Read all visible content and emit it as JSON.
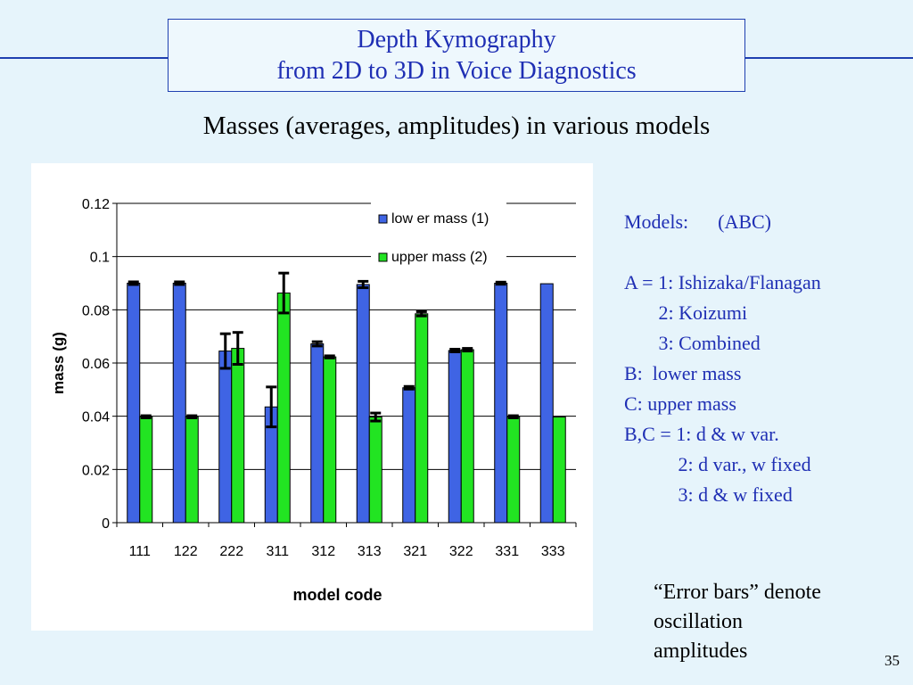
{
  "header": {
    "title_line1": "Depth Kymography",
    "title_line2": "from 2D to 3D in Voice Diagnostics"
  },
  "subtitle": "Masses (averages, amplitudes) in various models",
  "notes": [
    "Models:      (ABC)",
    "",
    "A = 1: Ishizaka/Flanagan",
    "       2: Koizumi",
    "       3: Combined",
    "B:  lower mass",
    "C: upper mass",
    "B,C = 1: d & w var.",
    "           2: d var., w fixed",
    "           3: d & w fixed"
  ],
  "caption": [
    "“Error bars” denote",
    "oscillation",
    "amplitudes"
  ],
  "page_number": "35",
  "chart_data": {
    "type": "bar",
    "xlabel": "model code",
    "ylabel": "mass (g)",
    "ylim": [
      0,
      0.12
    ],
    "yticks": [
      "0",
      "0.02",
      "0.04",
      "0.06",
      "0.08",
      "0.1",
      "0.12"
    ],
    "ytick_values": [
      0,
      0.02,
      0.04,
      0.06,
      0.08,
      0.1,
      0.12
    ],
    "categories": [
      "111",
      "122",
      "222",
      "311",
      "312",
      "313",
      "321",
      "322",
      "331",
      "333"
    ],
    "legend_position": "top-right",
    "series": [
      {
        "name": "low er mass (1)",
        "color": "#3f64e4",
        "values": [
          0.09,
          0.09,
          0.0645,
          0.0435,
          0.0672,
          0.0895,
          0.0507,
          0.0647,
          0.09,
          0.0898
        ],
        "errors": [
          0.0005,
          0.0005,
          0.0065,
          0.0075,
          0.0008,
          0.0012,
          0.0005,
          0.0005,
          0.0004,
          0
        ]
      },
      {
        "name": "upper mass (2)",
        "color": "#22e422",
        "values": [
          0.0398,
          0.0398,
          0.0655,
          0.0863,
          0.0623,
          0.0397,
          0.0785,
          0.065,
          0.0398,
          0.0397
        ],
        "errors": [
          0.0004,
          0.0004,
          0.006,
          0.0075,
          0.0004,
          0.0015,
          0.0008,
          0.0005,
          0.0004,
          0
        ]
      }
    ]
  }
}
